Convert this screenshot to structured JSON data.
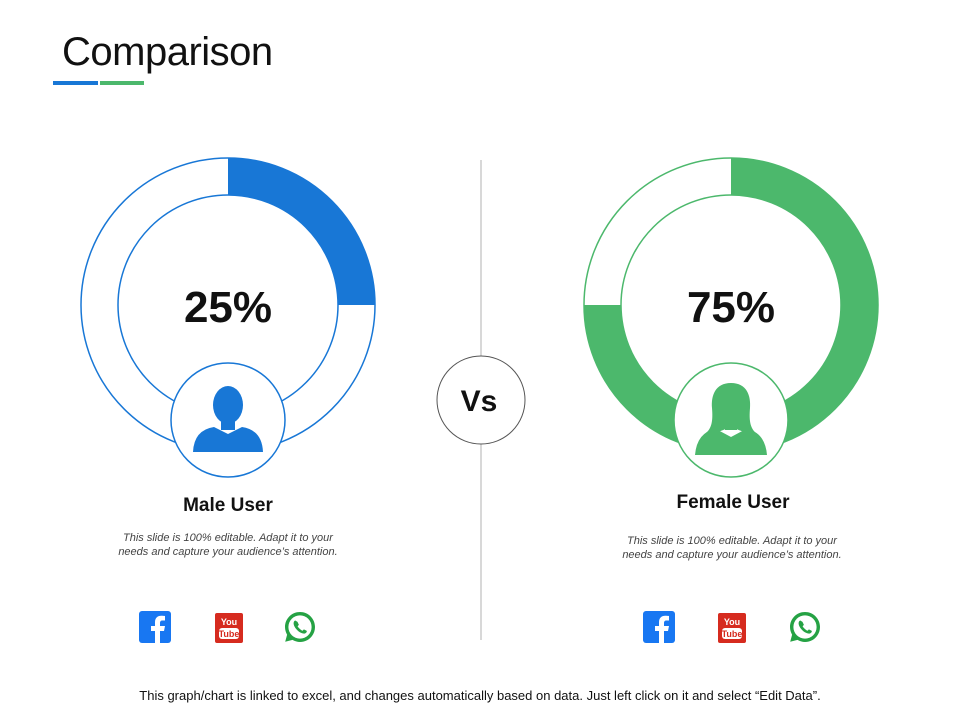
{
  "slide": {
    "title": "Comparison",
    "vs_label": "Vs",
    "footer": "This graph/chart is linked to excel, and changes automatically based on data. Just left click on it and select “Edit Data”."
  },
  "colors": {
    "male_accent": "#1877D6",
    "female_accent": "#4CB86C",
    "divider": "#B0B0B0",
    "facebook": "#1877F2",
    "youtube": "#D62B1F",
    "whatsapp": "#25A244"
  },
  "icons": {
    "male": "male-user-icon",
    "female": "female-user-icon",
    "social": [
      "facebook-icon",
      "youtube-icon",
      "whatsapp-icon"
    ]
  },
  "panels": {
    "male": {
      "label": "Male User",
      "percent_label": "25%",
      "description": "This slide is 100% editable. Adapt it to your needs and capture your audience’s attention."
    },
    "female": {
      "label": "Female User",
      "percent_label": "75%",
      "description": "This slide is 100% editable. Adapt it to your needs and capture your audience’s attention."
    }
  },
  "chart_data": [
    {
      "type": "pie",
      "series": [
        {
          "values": [
            25,
            75
          ]
        }
      ]
    },
    {
      "type": "pie",
      "series": [
        {
          "values": [
            75,
            25
          ]
        }
      ]
    }
  ]
}
